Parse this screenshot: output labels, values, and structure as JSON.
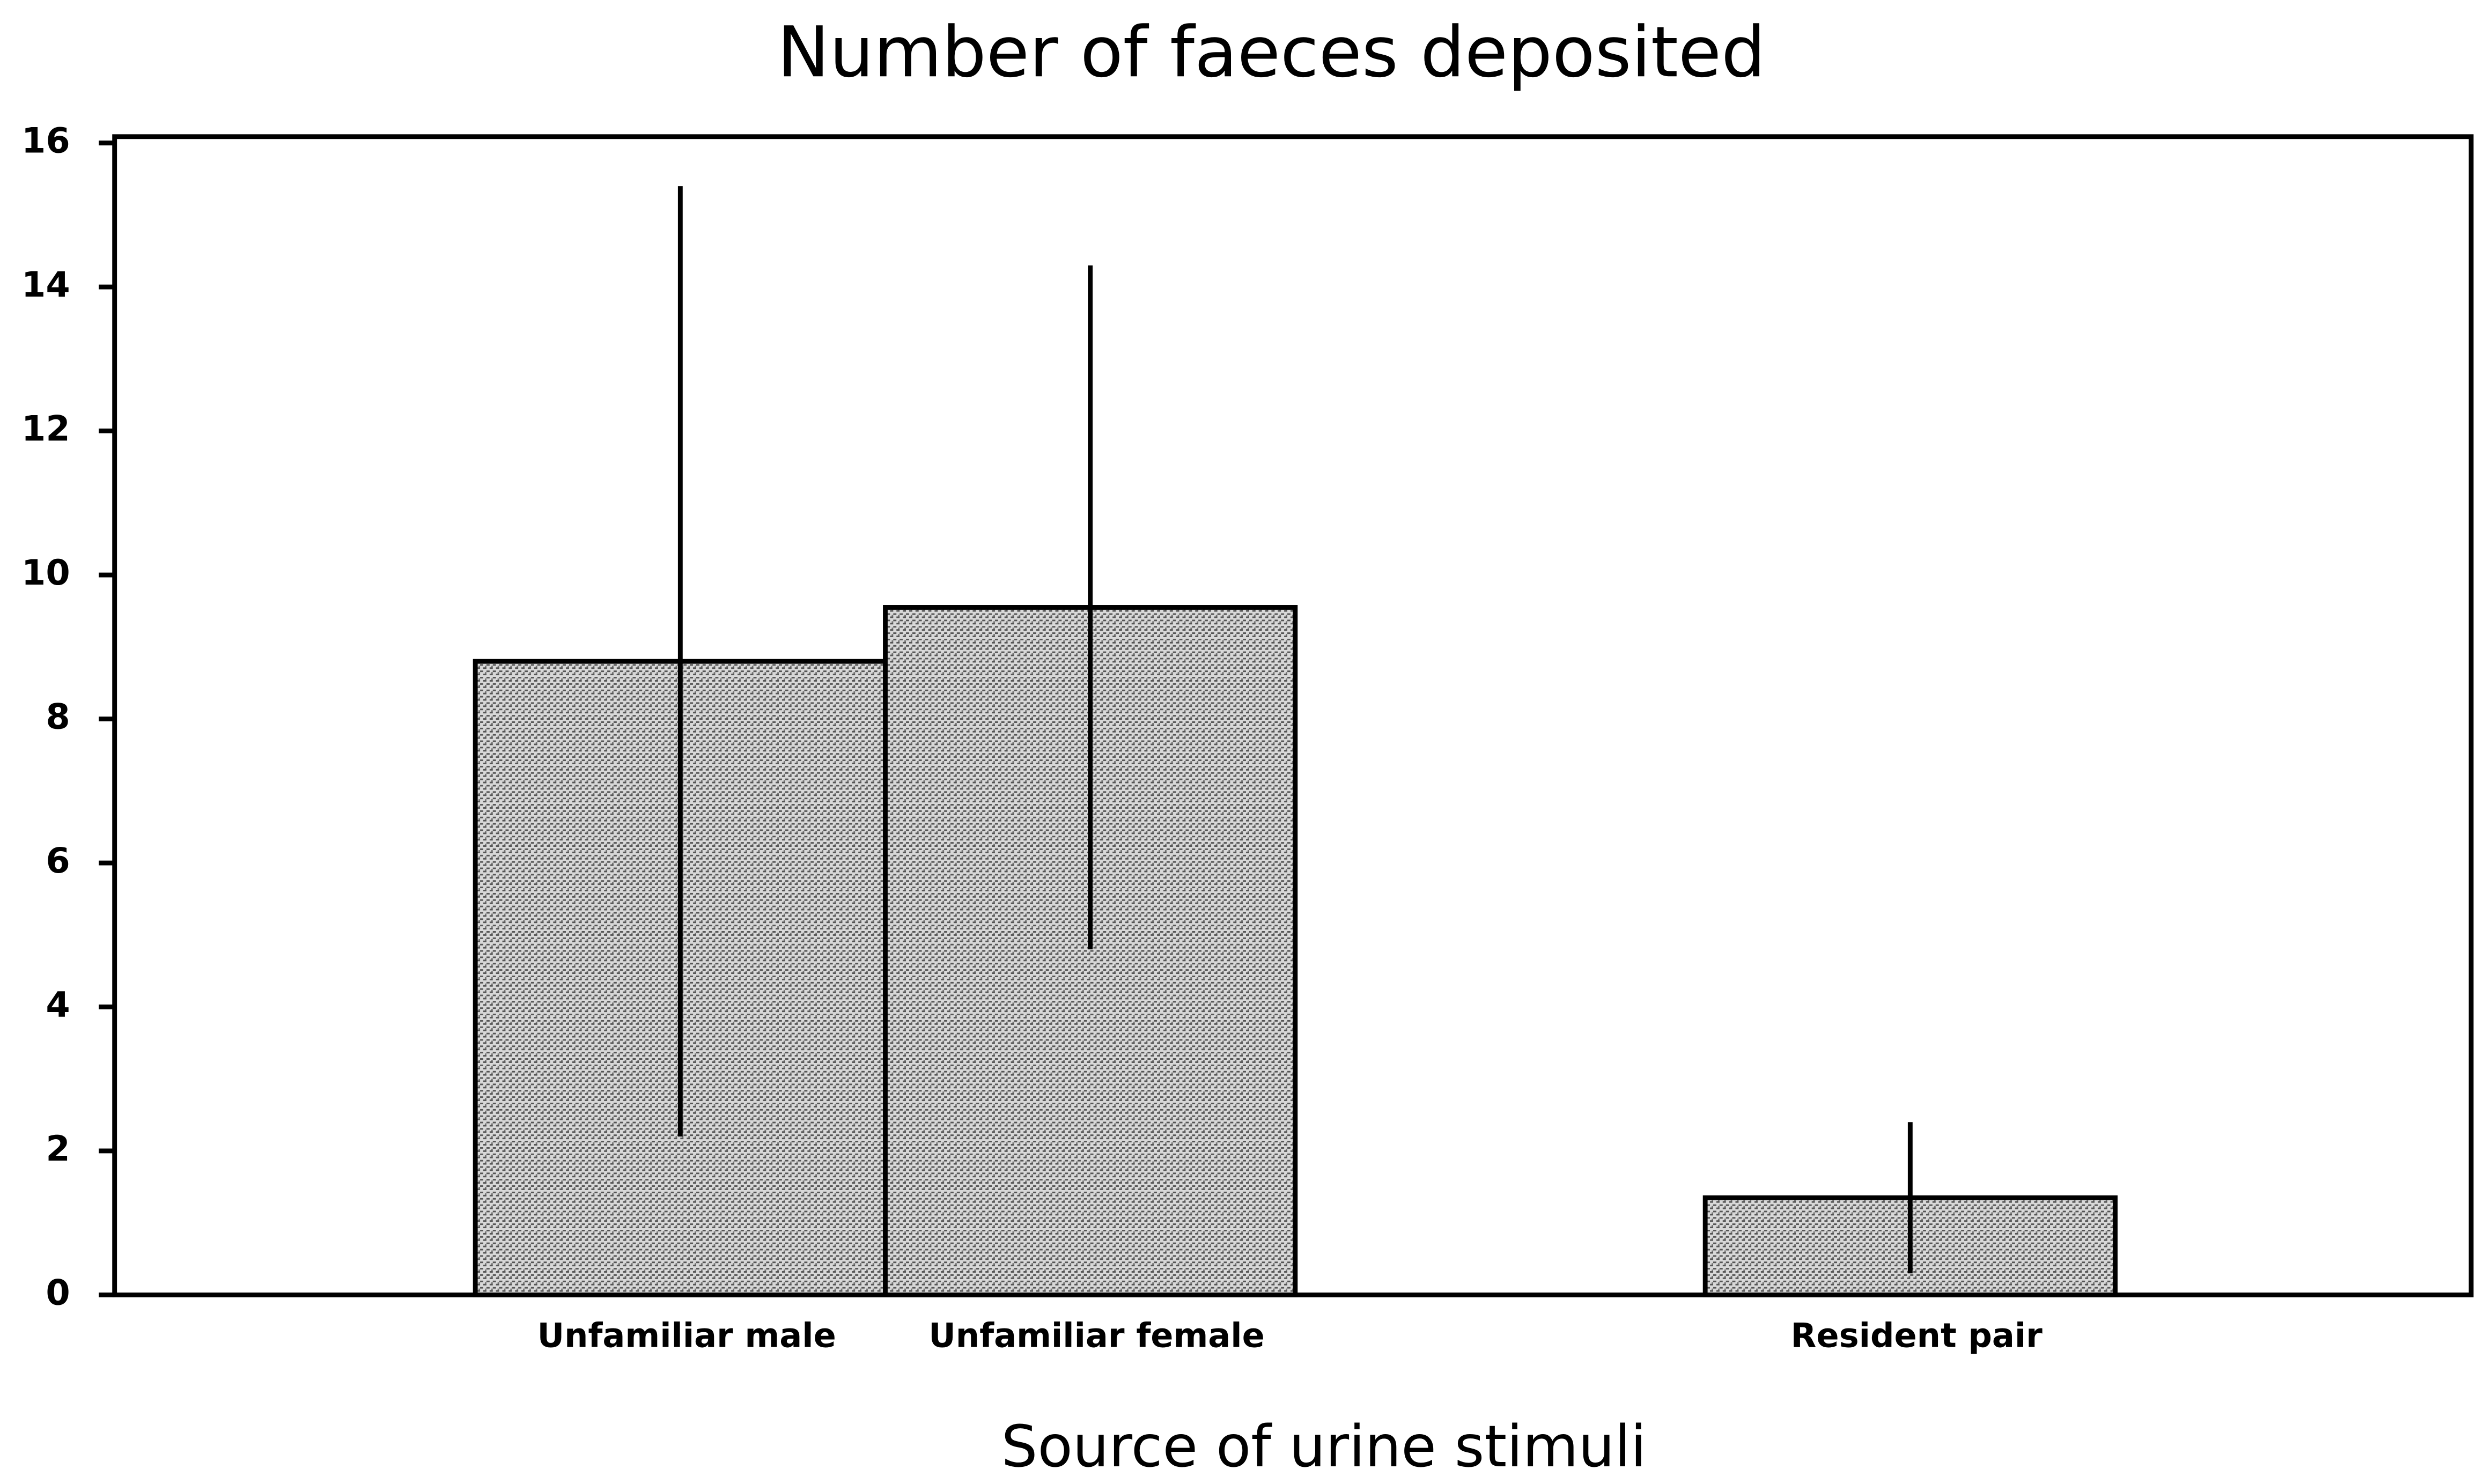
{
  "chart_data": {
    "type": "bar",
    "title": "Number of faeces deposited",
    "x_label": "Source of urine stimuli",
    "categories": [
      "Unfamiliar male",
      "Unfamiliar female",
      null,
      "Resident pair"
    ],
    "values": [
      8.8,
      9.55,
      null,
      1.35
    ],
    "errors": [
      6.6,
      4.75,
      null,
      1.05
    ],
    "color": "#a8a8a8",
    "ylim": [
      0,
      16
    ],
    "yticks": [
      0,
      2,
      4,
      6,
      8,
      10,
      12,
      14,
      16
    ],
    "grid": false
  }
}
